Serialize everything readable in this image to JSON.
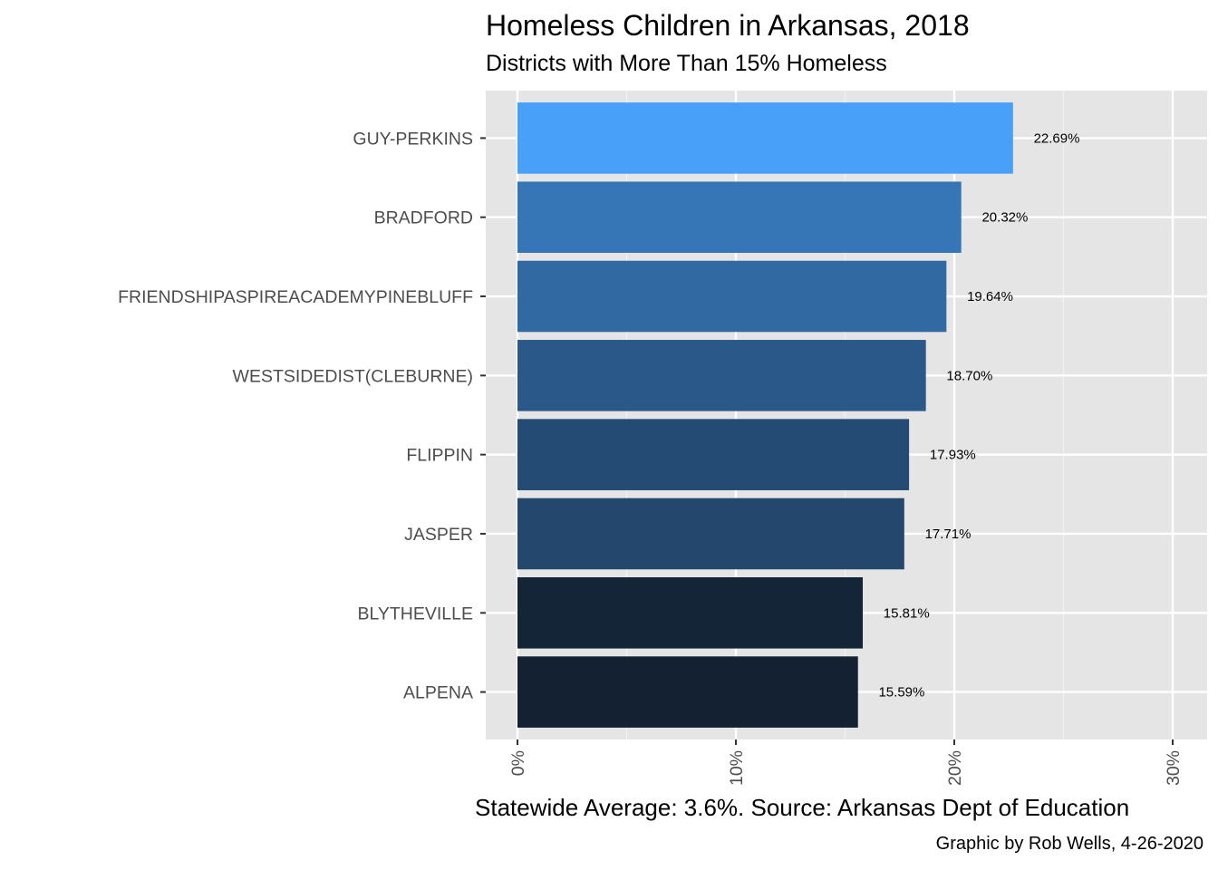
{
  "chart_data": {
    "type": "bar",
    "orientation": "horizontal",
    "title": "Homeless Children in Arkansas, 2018",
    "subtitle": "Districts with More Than 15% Homeless",
    "xlabel": "Statewide Average: 3.6%. Source: Arkansas Dept of Education",
    "ylabel": "",
    "caption": "Graphic by Rob Wells, 4-26-2020",
    "categories": [
      "GUY-PERKINS",
      "BRADFORD",
      "FRIENDSHIPASPIREACADEMYPINEBLUFF",
      "WESTSIDEDIST(CLEBURNE)",
      "FLIPPIN",
      "JASPER",
      "BLYTHEVILLE",
      "ALPENA"
    ],
    "values": [
      22.69,
      20.32,
      19.64,
      18.7,
      17.93,
      17.71,
      15.81,
      15.59
    ],
    "value_labels": [
      "22.69%",
      "20.32%",
      "19.64%",
      "18.70%",
      "17.93%",
      "17.71%",
      "15.81%",
      "15.59%"
    ],
    "xlim": [
      0,
      30
    ],
    "x_ticks": [
      0,
      10,
      20,
      30
    ],
    "x_tick_labels": [
      "0%",
      "10%",
      "20%",
      "30%"
    ],
    "color_scale": {
      "low": "#132132",
      "high": "#48a0f8"
    },
    "grid": true
  }
}
